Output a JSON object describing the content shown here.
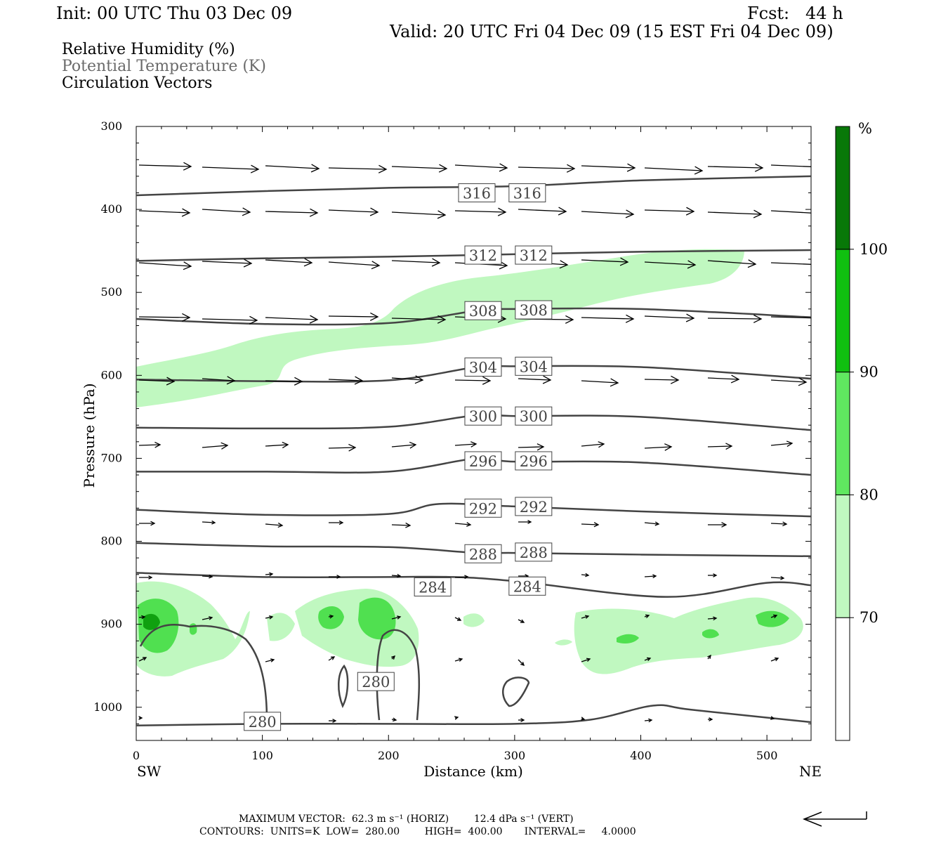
{
  "header": {
    "init": "Init: 00 UTC Thu 03 Dec 09",
    "fcst": "Fcst:   44 h",
    "valid": "Valid: 20 UTC Fri 04 Dec 09 (15 EST Fri 04 Dec 09)",
    "field_rh": "Relative Humidity (%)",
    "field_theta": "Potential Temperature (K)",
    "field_vec": "Circulation Vectors"
  },
  "footer": {
    "max_vector": "MAXIMUM VECTOR:  62.3 m s⁻¹ (HORIZ)        12.4 dPa s⁻¹ (VERT)",
    "contours": "CONTOURS:  UNITS=K  LOW=  280.00        HIGH=  400.00       INTERVAL=     4.0000"
  },
  "chart_data": {
    "type": "cross-section",
    "xlabel": "Distance (km)",
    "ylabel": "Pressure (hPa)",
    "x_ticks": [
      0,
      100,
      200,
      300,
      400,
      500
    ],
    "y_ticks": [
      300,
      400,
      500,
      600,
      700,
      800,
      900,
      1000
    ],
    "xlim": [
      0,
      535
    ],
    "ylim": [
      300,
      1040
    ],
    "y_inverted": true,
    "left_end_label": "SW",
    "right_end_label": "NE",
    "colorbar": {
      "unit": "%",
      "levels": [
        70,
        80,
        90,
        100
      ],
      "colors": [
        "#ffffff",
        "#c0f8c0",
        "#60e860",
        "#10c010",
        "#087808"
      ]
    },
    "isentropes_K": [
      {
        "label": "316",
        "points": [
          [
            0,
            383
          ],
          [
            100,
            378
          ],
          [
            200,
            374
          ],
          [
            300,
            372
          ],
          [
            400,
            365
          ],
          [
            535,
            360
          ]
        ],
        "labels_at": [
          [
            270,
            380
          ],
          [
            310,
            380
          ]
        ]
      },
      {
        "label": "312",
        "points": [
          [
            0,
            462
          ],
          [
            100,
            459
          ],
          [
            200,
            457
          ],
          [
            300,
            454
          ],
          [
            400,
            451
          ],
          [
            535,
            449
          ]
        ],
        "labels_at": [
          [
            275,
            455
          ],
          [
            315,
            455
          ]
        ]
      },
      {
        "label": "308",
        "points": [
          [
            0,
            532
          ],
          [
            100,
            538
          ],
          [
            200,
            537
          ],
          [
            270,
            522
          ],
          [
            300,
            520
          ],
          [
            400,
            520
          ],
          [
            535,
            530
          ]
        ],
        "labels_at": [
          [
            275,
            522
          ],
          [
            315,
            521
          ]
        ]
      },
      {
        "label": "304",
        "points": [
          [
            0,
            605
          ],
          [
            100,
            607
          ],
          [
            200,
            606
          ],
          [
            270,
            590
          ],
          [
            300,
            589
          ],
          [
            400,
            590
          ],
          [
            535,
            604
          ]
        ],
        "labels_at": [
          [
            275,
            590
          ],
          [
            315,
            589
          ]
        ]
      },
      {
        "label": "300",
        "points": [
          [
            0,
            663
          ],
          [
            100,
            664
          ],
          [
            200,
            662
          ],
          [
            270,
            648
          ],
          [
            300,
            649
          ],
          [
            400,
            650
          ],
          [
            535,
            666
          ]
        ],
        "labels_at": [
          [
            275,
            649
          ],
          [
            315,
            649
          ]
        ]
      },
      {
        "label": "296",
        "points": [
          [
            0,
            716
          ],
          [
            100,
            716
          ],
          [
            200,
            716
          ],
          [
            270,
            700
          ],
          [
            300,
            704
          ],
          [
            400,
            705
          ],
          [
            535,
            720
          ]
        ],
        "labels_at": [
          [
            275,
            703
          ],
          [
            315,
            703
          ]
        ]
      },
      {
        "label": "292",
        "points": [
          [
            0,
            762
          ],
          [
            100,
            768
          ],
          [
            200,
            767
          ],
          [
            240,
            755
          ],
          [
            300,
            758
          ],
          [
            400,
            764
          ],
          [
            535,
            770
          ]
        ],
        "labels_at": [
          [
            275,
            760
          ],
          [
            315,
            758
          ]
        ]
      },
      {
        "label": "288",
        "points": [
          [
            0,
            802
          ],
          [
            100,
            806
          ],
          [
            200,
            807
          ],
          [
            270,
            814
          ],
          [
            300,
            814
          ],
          [
            400,
            816
          ],
          [
            535,
            818
          ]
        ],
        "labels_at": [
          [
            275,
            815
          ],
          [
            315,
            813
          ]
        ]
      },
      {
        "label": "284",
        "points": [
          [
            0,
            838
          ],
          [
            100,
            843
          ],
          [
            200,
            843
          ],
          [
            250,
            843
          ],
          [
            300,
            848
          ],
          [
            420,
            867
          ],
          [
            500,
            850
          ],
          [
            535,
            853
          ]
        ],
        "labels_at": [
          [
            235,
            855
          ],
          [
            310,
            854
          ]
        ]
      },
      {
        "label": "280",
        "points": [
          [
            0,
            1022
          ],
          [
            100,
            1020
          ],
          [
            200,
            1020
          ],
          [
            300,
            1020
          ],
          [
            360,
            1015
          ],
          [
            410,
            998
          ],
          [
            440,
            1003
          ],
          [
            535,
            1018
          ]
        ],
        "labels_at": [
          [
            100,
            1017
          ],
          [
            190,
            969
          ]
        ]
      }
    ],
    "humidity_regions": [
      {
        "min_pct": 70,
        "desc": "mid-level moist band rising from SW (~600 hPa) to NE (~450 hPa)"
      },
      {
        "min_pct": 70,
        "desc": "low-level moist layer near 880-960 hPa"
      },
      {
        "min_pct": 80,
        "desc": "embedded cores near 890-920 hPa"
      },
      {
        "min_pct": 90,
        "desc": "small core near x=10 km, 895 hPa"
      }
    ]
  }
}
